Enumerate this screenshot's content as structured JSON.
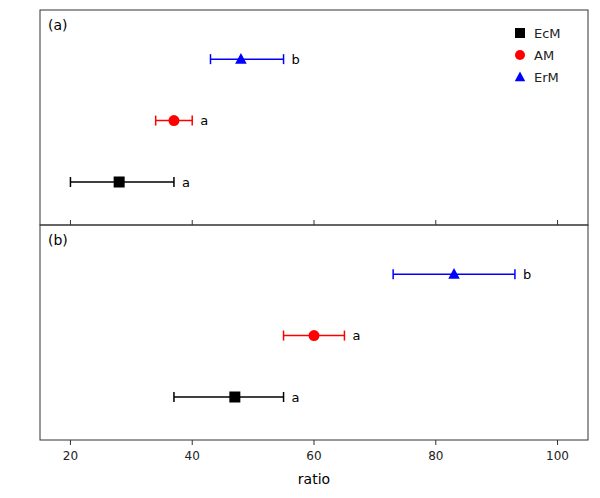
{
  "chart_data": [
    {
      "type": "errorbar",
      "orientation": "horizontal",
      "title": "(a)",
      "xlim": [
        15,
        105
      ],
      "xticks": [
        20,
        40,
        60,
        80,
        100
      ],
      "tick_labels": false,
      "grid": false,
      "legend": "upper right",
      "series": [
        {
          "name": "EcM",
          "color": "#000000",
          "marker": "square",
          "values": [
            28
          ],
          "err_low": [
            8
          ],
          "err_high": [
            9
          ],
          "annotations": [
            "a"
          ]
        },
        {
          "name": "AM",
          "color": "#ff0000",
          "marker": "circle",
          "values": [
            37
          ],
          "err_low": [
            3
          ],
          "err_high": [
            3
          ],
          "annotations": [
            "a"
          ]
        },
        {
          "name": "ErM",
          "color": "#0000ff",
          "marker": "triangle",
          "values": [
            48
          ],
          "err_low": [
            5
          ],
          "err_high": [
            7
          ],
          "annotations": [
            "b"
          ]
        }
      ]
    },
    {
      "type": "errorbar",
      "orientation": "horizontal",
      "title": "(b)",
      "xlabel": "ratio",
      "xlim": [
        15,
        105
      ],
      "xticks": [
        20,
        40,
        60,
        80,
        100
      ],
      "tick_labels": "x",
      "grid": false,
      "series": [
        {
          "name": "EcM",
          "color": "#000000",
          "marker": "square",
          "values": [
            47
          ],
          "err_low": [
            10
          ],
          "err_high": [
            8
          ],
          "annotations": [
            "a"
          ]
        },
        {
          "name": "AM",
          "color": "#ff0000",
          "marker": "circle",
          "values": [
            60
          ],
          "err_low": [
            5
          ],
          "err_high": [
            5
          ],
          "annotations": [
            "a"
          ]
        },
        {
          "name": "ErM",
          "color": "#0000ff",
          "marker": "triangle",
          "values": [
            83
          ],
          "err_low": [
            10
          ],
          "err_high": [
            10
          ],
          "annotations": [
            "b"
          ]
        }
      ]
    }
  ]
}
